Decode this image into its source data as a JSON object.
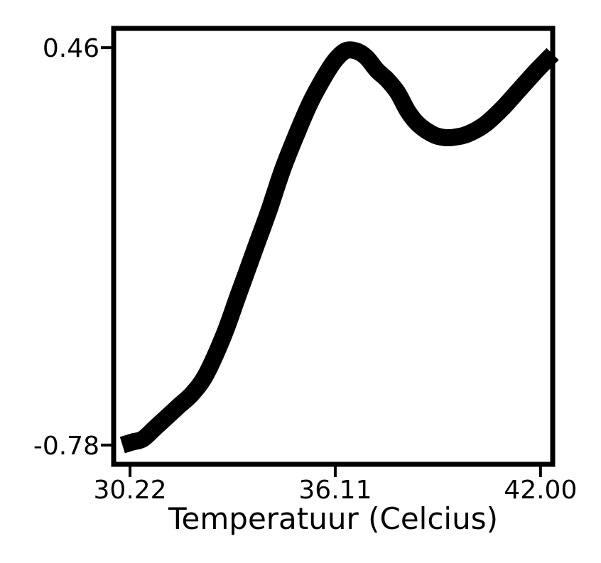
{
  "chart_data": {
    "type": "line",
    "title": "",
    "xlabel": "Temperatuur (Celcius)",
    "ylabel": "",
    "xlim": [
      29.75,
      42.35
    ],
    "ylim": [
      -0.84,
      0.52
    ],
    "x_ticks": [
      {
        "value": 30.22,
        "label": "30.22"
      },
      {
        "value": 36.11,
        "label": "36.11"
      },
      {
        "value": 42.0,
        "label": "42.00"
      }
    ],
    "y_ticks": [
      {
        "value": 0.46,
        "label": "0.46"
      },
      {
        "value": -0.78,
        "label": "-0.78"
      }
    ],
    "grid": false,
    "legend": "none",
    "series": [
      {
        "color": "#000000",
        "x": [
          30.0,
          30.3,
          30.6,
          31.0,
          31.6,
          32.0,
          32.4,
          32.9,
          33.3,
          33.8,
          34.2,
          34.6,
          35.0,
          35.4,
          35.8,
          36.1,
          36.4,
          36.7,
          37.0,
          37.3,
          37.6,
          37.9,
          38.2,
          38.5,
          38.9,
          39.2,
          39.5,
          39.9,
          40.4,
          40.9,
          41.4,
          41.9,
          42.35
        ],
        "y": [
          -0.78,
          -0.77,
          -0.76,
          -0.72,
          -0.66,
          -0.62,
          -0.56,
          -0.44,
          -0.32,
          -0.17,
          -0.05,
          0.08,
          0.19,
          0.29,
          0.37,
          0.42,
          0.45,
          0.45,
          0.43,
          0.39,
          0.36,
          0.32,
          0.26,
          0.22,
          0.19,
          0.18,
          0.18,
          0.19,
          0.22,
          0.27,
          0.33,
          0.39,
          0.44
        ]
      }
    ]
  }
}
